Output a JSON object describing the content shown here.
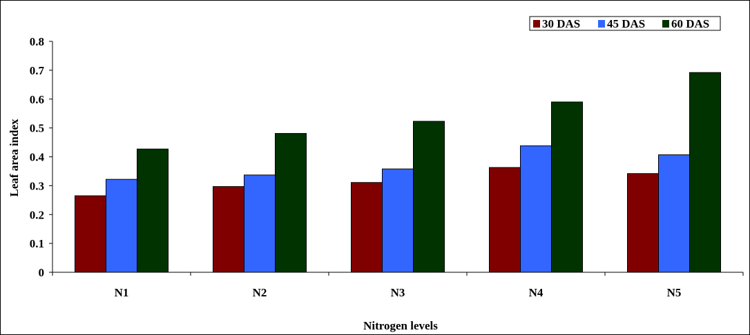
{
  "chart_data": {
    "type": "bar",
    "title": "",
    "xlabel": "Nitrogen levels",
    "ylabel": "Leaf area index",
    "categories": [
      "N1",
      "N2",
      "N3",
      "N4",
      "N5"
    ],
    "series": [
      {
        "name": "30 DAS",
        "color": "#800000",
        "values": [
          0.265,
          0.297,
          0.311,
          0.363,
          0.342
        ]
      },
      {
        "name": "45 DAS",
        "color": "#3366ff",
        "values": [
          0.322,
          0.337,
          0.358,
          0.438,
          0.407
        ]
      },
      {
        "name": "60 DAS",
        "color": "#003300",
        "values": [
          0.427,
          0.481,
          0.523,
          0.59,
          0.692
        ]
      }
    ],
    "ylim": [
      0,
      0.8
    ],
    "yticks": [
      "0",
      "0.1",
      "0.2",
      "0.3",
      "0.4",
      "0.5",
      "0.6",
      "0.7",
      "0.8"
    ],
    "grid": false,
    "legend_position": "top-right"
  }
}
